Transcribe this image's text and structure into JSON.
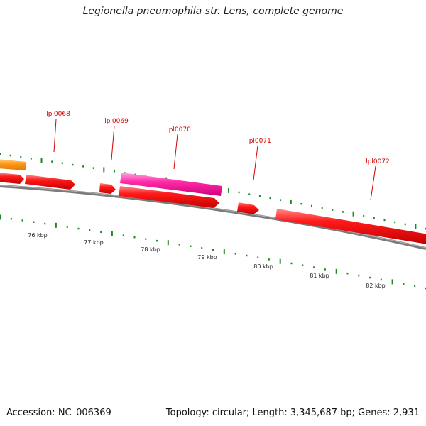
{
  "header": {
    "title": "Legionella pneumophila str. Lens, complete genome"
  },
  "map": {
    "ruler_labels": [
      "76 kbp",
      "77 kbp",
      "78 kbp",
      "79 kbp",
      "80 kbp",
      "81 kbp",
      "82 kbp"
    ],
    "gene_labels": [
      "lpl0068",
      "lpl0069",
      "lpl0070",
      "lpl0071",
      "lpl0072"
    ],
    "colors": {
      "backbone": "#808080",
      "gene_red": "#ee0000",
      "gene_pink": "#ff1f9f",
      "gene_orange": "#ff8c00",
      "tick_green": "#1c8a1c",
      "label_red": "#d40000"
    }
  },
  "footer": {
    "accession": "Accession: NC_006369",
    "summary": "Topology: circular; Length: 3,345,687 bp; Genes: 2,931"
  }
}
